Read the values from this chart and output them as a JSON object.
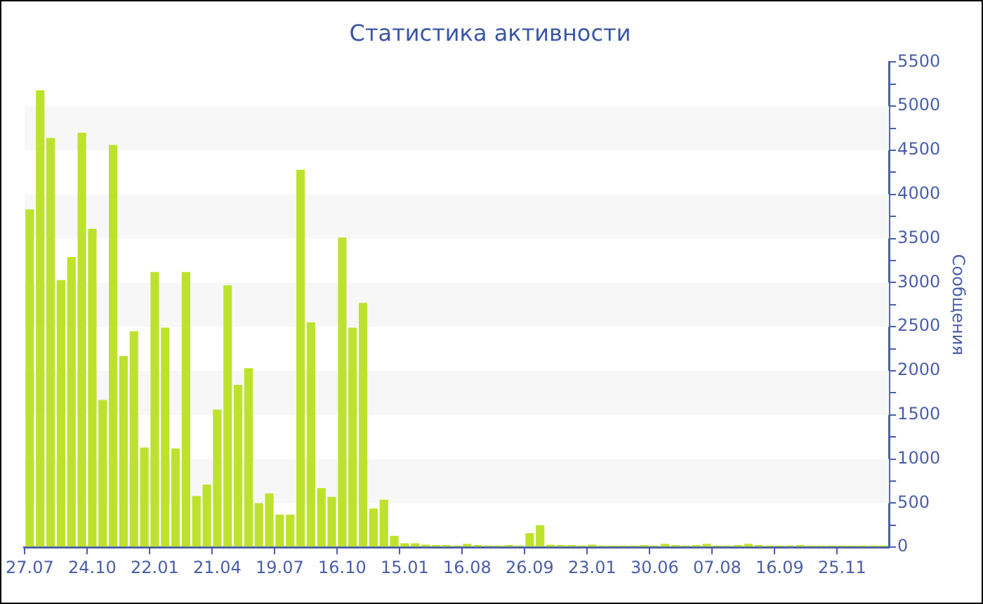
{
  "chart_data": {
    "type": "bar",
    "title": "Статистика активности",
    "ylabel": "Сообщения",
    "categories": [
      "27.07",
      null,
      null,
      null,
      null,
      null,
      "24.10",
      null,
      null,
      null,
      null,
      null,
      "22.01",
      null,
      null,
      null,
      null,
      null,
      "21.04",
      null,
      null,
      null,
      null,
      null,
      "19.07",
      null,
      null,
      null,
      null,
      null,
      "16.10",
      null,
      null,
      null,
      null,
      null,
      "15.01",
      null,
      null,
      null,
      null,
      null,
      "16.08",
      null,
      null,
      null,
      null,
      null,
      "26.09",
      null,
      null,
      null,
      null,
      null,
      "23.01",
      null,
      null,
      null,
      null,
      null,
      "30.06",
      null,
      null,
      null,
      null,
      null,
      "07.08",
      null,
      null,
      null,
      null,
      null,
      "16.09",
      null,
      null,
      null,
      null,
      null,
      "25.11",
      null,
      null,
      null,
      null
    ],
    "values": [
      3830,
      5180,
      4640,
      3030,
      3290,
      4700,
      3610,
      1670,
      4560,
      2170,
      2450,
      1130,
      3120,
      2490,
      1120,
      3120,
      580,
      710,
      1560,
      2970,
      1840,
      2030,
      500,
      610,
      370,
      370,
      4280,
      2550,
      670,
      570,
      3510,
      2490,
      2770,
      440,
      540,
      130,
      45,
      45,
      30,
      25,
      25,
      20,
      40,
      25,
      20,
      20,
      25,
      20,
      160,
      250,
      30,
      25,
      25,
      20,
      30,
      20,
      20,
      20,
      20,
      25,
      20,
      40,
      25,
      20,
      25,
      40,
      20,
      20,
      25,
      40,
      25,
      20,
      20,
      20,
      25,
      20,
      20,
      20,
      20,
      20,
      20,
      20,
      20
    ],
    "color": "#bde22e",
    "ylim": [
      0,
      5500
    ],
    "yticks": [
      0,
      {
        "value": 250,
        "label": null
      },
      500,
      {
        "value": 750,
        "label": null
      },
      1000,
      {
        "value": 1250,
        "label": null
      },
      1500,
      {
        "value": 1750,
        "label": null
      },
      2000,
      {
        "value": 2250,
        "label": null
      },
      2500,
      {
        "value": 2750,
        "label": null
      },
      3000,
      {
        "value": 3250,
        "label": null
      },
      3500,
      {
        "value": 3750,
        "label": null
      },
      4000,
      {
        "value": 4250,
        "label": null
      },
      4500,
      {
        "value": 4750,
        "label": null
      },
      5000,
      {
        "value": 5250,
        "label": null
      },
      5500
    ],
    "bands": [
      {
        "axis": "y",
        "from": 500,
        "to": 1000,
        "color": "#f7f7f7"
      },
      {
        "axis": "y",
        "from": 1500,
        "to": 2000,
        "color": "#f7f7f7"
      },
      {
        "axis": "y",
        "from": 2500,
        "to": 3000,
        "color": "#f7f7f7"
      },
      {
        "axis": "y",
        "from": 3500,
        "to": 4000,
        "color": "#f7f7f7"
      },
      {
        "axis": "y",
        "from": 4500,
        "to": 5000,
        "color": "#f7f7f7"
      }
    ]
  }
}
